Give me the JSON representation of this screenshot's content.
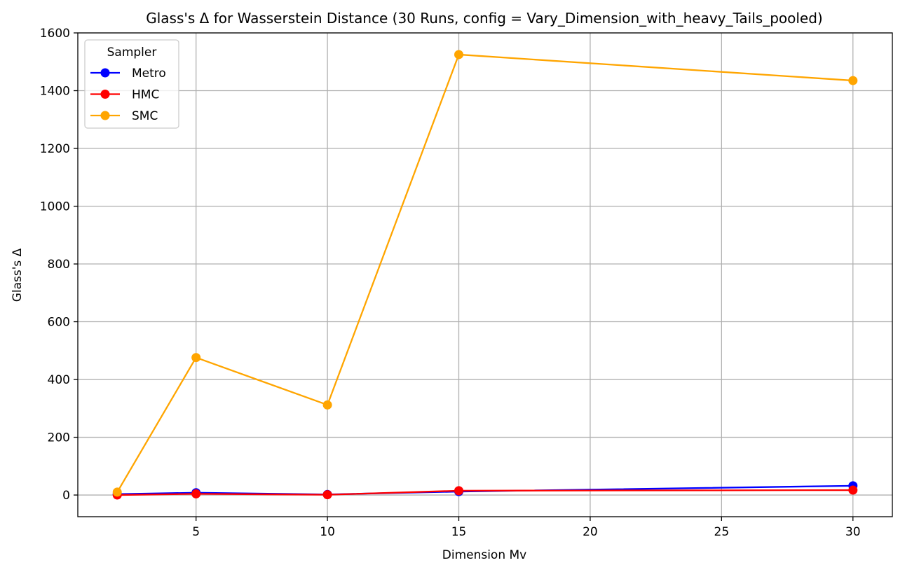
{
  "chart_data": {
    "type": "line",
    "title": "Glass's Δ for Wasserstein Distance (30 Runs, config = Vary_Dimension_with_heavy_Tails_pooled)",
    "xlabel": "Dimension Mv",
    "ylabel": "Glass's Δ",
    "xlim": [
      0.5,
      31.5
    ],
    "ylim": [
      -75,
      1600
    ],
    "xticks": [
      5,
      10,
      15,
      20,
      25,
      30
    ],
    "yticks": [
      0,
      200,
      400,
      600,
      800,
      1000,
      1200,
      1400,
      1600
    ],
    "grid": true,
    "legend": {
      "title": "Sampler",
      "placement": "upper-left"
    },
    "x": [
      2,
      5,
      10,
      15,
      30
    ],
    "series": [
      {
        "name": "Metro",
        "color": "#0000ff",
        "values": [
          3,
          8,
          2,
          12,
          32
        ]
      },
      {
        "name": "HMC",
        "color": "#ff0000",
        "values": [
          0,
          4,
          1,
          15,
          17
        ]
      },
      {
        "name": "SMC",
        "color": "#ffa500",
        "values": [
          10,
          476,
          312,
          1525,
          1435
        ]
      }
    ]
  }
}
